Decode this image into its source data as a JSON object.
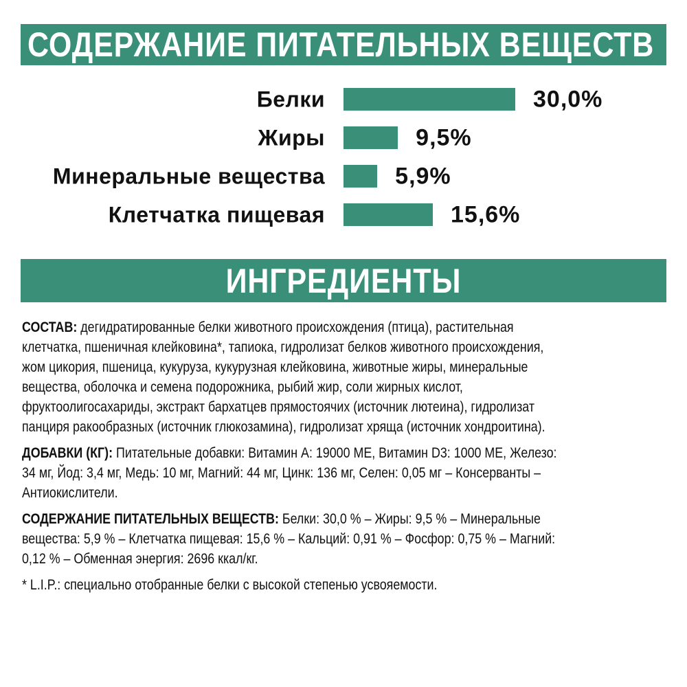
{
  "colors": {
    "accent": "#3a8f78",
    "text": "#111111",
    "background": "#ffffff"
  },
  "header1": "СОДЕРЖАНИЕ ПИТАТЕЛЬНЫХ ВЕЩЕСТВ",
  "header2": "ИНГРЕДИЕНТЫ",
  "chart_data": {
    "type": "bar",
    "orientation": "horizontal",
    "categories": [
      "Белки",
      "Жиры",
      "Минеральные вещества",
      "Клетчатка пищевая"
    ],
    "values": [
      30.0,
      9.5,
      5.9,
      15.6
    ],
    "value_labels": [
      "30,0%",
      "9,5%",
      "5,9%",
      "15,6%"
    ],
    "unit": "%",
    "grid": false,
    "axes_visible": false,
    "color": "#3a8f78"
  },
  "composition": {
    "label": "СОСТАВ:",
    "lines": [
      " дегидратированные белки животного происхождения (птица), растительная",
      "клетчатка, пшеничная клейковина*, тапиока, гидролизат белков животного происхождения,",
      "жом цикория, пшеница, кукуруза, кукурузная клейковина, животные жиры, минеральные",
      "вещества, оболочка и семена подорожника, рыбий жир, соли жирных кислот,",
      "фруктоолигосахариды, экстракт бархатцев прямостоячих (источник лютеина), гидролизат",
      "панциря ракообразных (источник глюкозамина), гидролизат хряща (источник хондроитина)."
    ]
  },
  "additives": {
    "label": "ДОБАВКИ (КГ):",
    "lines": [
      " Питательные добавки: Витамин А: 19000 МЕ, Витамин D3: 1000 МЕ, Железо:",
      "34 мг, Йод: 3,4 мг, Медь: 10 мг, Магний: 44 мг, Цинк: 136 мг, Селен: 0,05 мг – Консерванты –",
      "Антиокислители."
    ]
  },
  "nutrients": {
    "label": "СОДЕРЖАНИЕ ПИТАТЕЛЬНЫХ ВЕЩЕСТВ:",
    "lines": [
      " Белки: 30,0 % – Жиры: 9,5 % – Минеральные",
      "вещества: 5,9 % – Клетчатка пищевая: 15,6 % – Кальций: 0,91 % – Фосфор: 0,75 % – Магний:",
      "0,12 % – Обменная энергия: 2696 ккал/кг."
    ]
  },
  "footnote": "* L.I.P.: специально отобранные белки с высокой степенью усвояемости."
}
